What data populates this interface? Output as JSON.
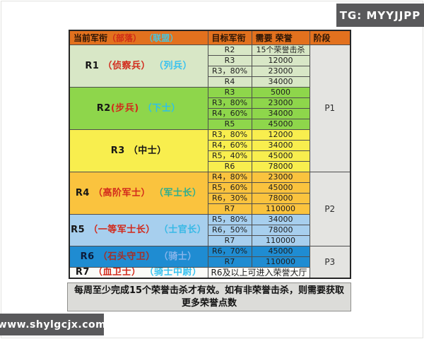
{
  "badges": {
    "top_right": {
      "label": "TG: MYYJJPP",
      "bg": "#59595b",
      "fg": "#ffffff"
    },
    "bottom_left": {
      "label": "www.shylgcjx.com",
      "bg": "#59595b",
      "fg": "#ffffff"
    }
  },
  "colors": {
    "header_bg": "#e2711e",
    "header_fg": "#2b1506",
    "stage_bg": "#e4e4e1",
    "grid": "#4e4e4e",
    "outer_border": "#262626",
    "page_bg": "#ffffff"
  },
  "table": {
    "header": {
      "current_parts": [
        {
          "text": "当前军衔",
          "color": "#2b1506"
        },
        {
          "text": "（部落）",
          "color": "#cf2a17"
        },
        {
          "text": " （联盟）",
          "color": "#49c6dd"
        }
      ],
      "target": "目标军衔",
      "honor": "需要 荣誉",
      "stage": "阶段"
    },
    "sections": [
      {
        "bg": "#d8e7c6",
        "label_parts": [
          {
            "text": "R1 ",
            "color": "#161616"
          },
          {
            "text": "（侦察兵）",
            "color": "#d2291b"
          },
          {
            "text": " （列兵）",
            "color": "#38c2f0"
          }
        ],
        "rows": [
          {
            "target": "R2",
            "honor": "15个荣誉击杀"
          },
          {
            "target": "R3",
            "honor": "12000"
          },
          {
            "target": "R3，80%",
            "honor": "23000"
          },
          {
            "target": "R4",
            "honor": "34000"
          }
        ]
      },
      {
        "bg": "#8ed64b",
        "label_parts": [
          {
            "text": "R2",
            "color": "#161616"
          },
          {
            "text": "(步兵)",
            "color": "#d2291b"
          },
          {
            "text": " （下士）",
            "color": "#2fc0e8"
          }
        ],
        "rows": [
          {
            "target": "R3",
            "honor": "5000"
          },
          {
            "target": "R3，80%",
            "honor": "23000"
          },
          {
            "target": "R4，60%",
            "honor": "34000"
          },
          {
            "target": "R5",
            "honor": "45000"
          }
        ]
      },
      {
        "bg": "#f8ee4e",
        "label_parts": [
          {
            "text": "R3 （中士）",
            "color": "#161616"
          }
        ],
        "rows": [
          {
            "target": "R3，80%",
            "honor": "12000"
          },
          {
            "target": "R4，60%",
            "honor": "34000"
          },
          {
            "target": "R5，40%",
            "honor": "45000"
          },
          {
            "target": "R6",
            "honor": "78000"
          }
        ]
      },
      {
        "bg": "#fac33e",
        "label_parts": [
          {
            "text": "R4 ",
            "color": "#161616"
          },
          {
            "text": "（高阶军士）",
            "color": "#d2291b"
          },
          {
            "text": " （军士长）",
            "color": "#2fae8e"
          }
        ],
        "rows": [
          {
            "target": "R4，80%",
            "honor": "23000"
          },
          {
            "target": "R5，60%",
            "honor": "45000"
          },
          {
            "target": "R6，30%",
            "honor": "78000"
          },
          {
            "target": "R7",
            "honor": "110000"
          }
        ]
      },
      {
        "bg": "#a7cfee",
        "label_parts": [
          {
            "text": "R5 ",
            "color": "#161616"
          },
          {
            "text": "（一等军士长）",
            "color": "#d2291b"
          },
          {
            "text": " （士官长）",
            "color": "#38b9e6"
          }
        ],
        "rows": [
          {
            "target": "R5，80%",
            "honor": "34000"
          },
          {
            "target": "R6，50%",
            "honor": "78000"
          },
          {
            "target": "R7",
            "honor": "110000"
          }
        ]
      },
      {
        "bg": "#1f8cd2",
        "label_parts": [
          {
            "text": "R6 ",
            "color": "#0d1c3a"
          },
          {
            "text": "（石头守卫）",
            "color": "#a62f26"
          },
          {
            "text": " （骑士）",
            "color": "#86b4ea"
          }
        ],
        "rows": [
          {
            "target": "R6，70%",
            "honor": "45000"
          },
          {
            "target": "R7",
            "honor": "110000"
          }
        ]
      }
    ],
    "final_row": {
      "bg": "#fbfbf8",
      "label_parts": [
        {
          "text": "R7 ",
          "color": "#161616"
        },
        {
          "text": "（血卫士）",
          "color": "#d2291b"
        },
        {
          "text": " （骑士中尉）",
          "color": "#38c2f0"
        }
      ],
      "note": "R6及以上可进入荣誉大厅"
    },
    "stages": [
      {
        "label": "P1",
        "start": 0,
        "span": 12
      },
      {
        "label": "P2",
        "start": 12,
        "span": 7
      },
      {
        "label": "P3",
        "start": 19,
        "span": 3
      }
    ]
  },
  "footer": "每周至少完成15个荣誉击杀才有效。如有非荣誉击杀，则需要获取更多荣誉点数"
}
